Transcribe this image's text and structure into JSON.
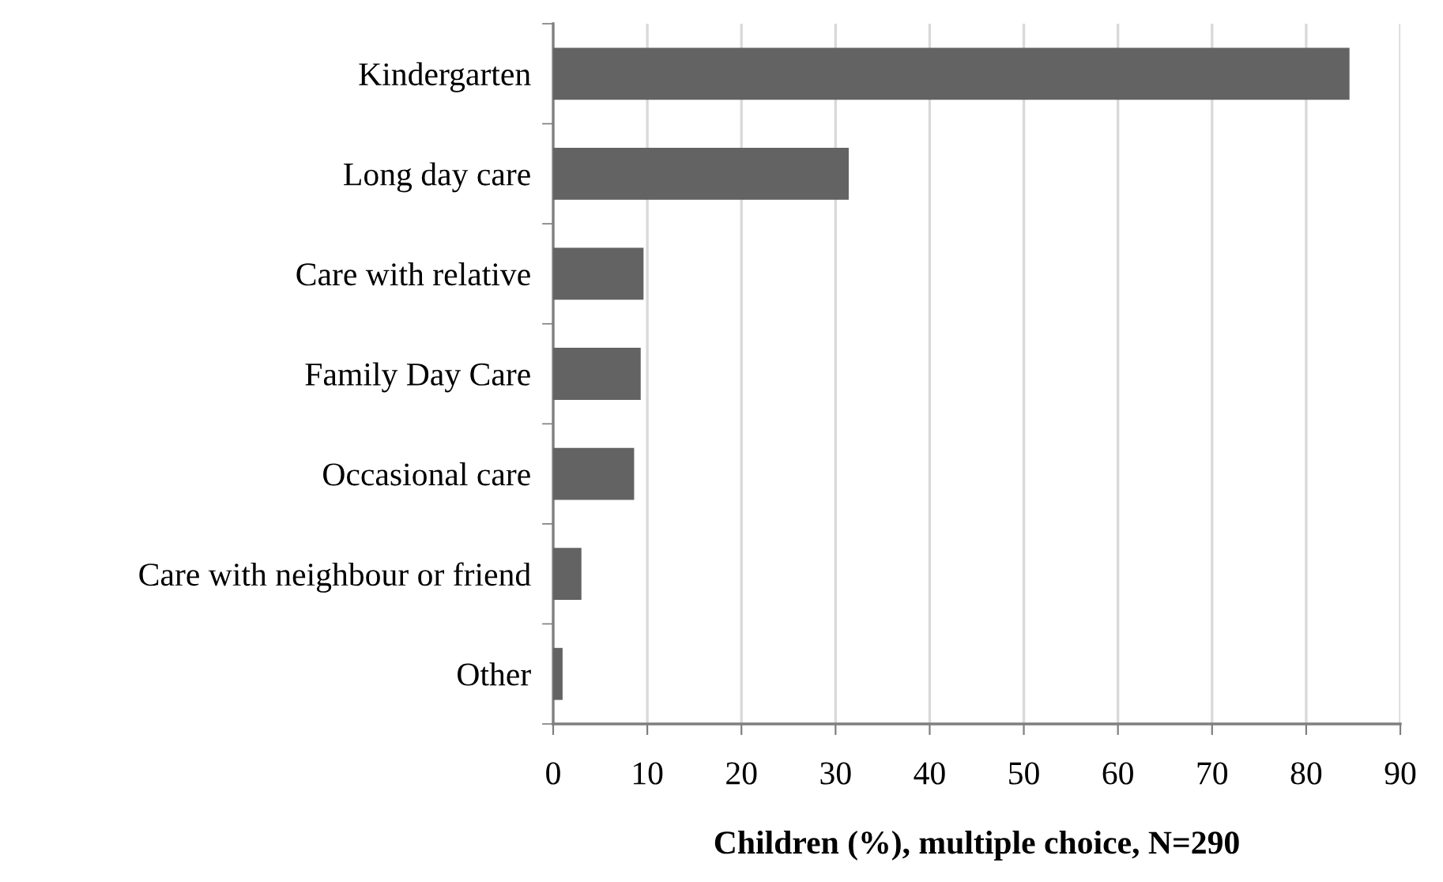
{
  "chart_data": {
    "type": "bar",
    "orientation": "horizontal",
    "categories": [
      "Kindergarten",
      "Long day care",
      "Care with relative",
      "Family Day Care",
      "Occasional care",
      "Care with neighbour or friend",
      "Other"
    ],
    "values": [
      84.6,
      31.4,
      9.6,
      9.3,
      8.6,
      3.0,
      1.0
    ],
    "color": "#636363",
    "xlabel": "Children (%), multiple choice, N=290",
    "xlim": [
      0,
      90
    ],
    "xticks": [
      0,
      10,
      20,
      30,
      40,
      50,
      60,
      70,
      80,
      90
    ],
    "grid": "x",
    "legend": false
  }
}
